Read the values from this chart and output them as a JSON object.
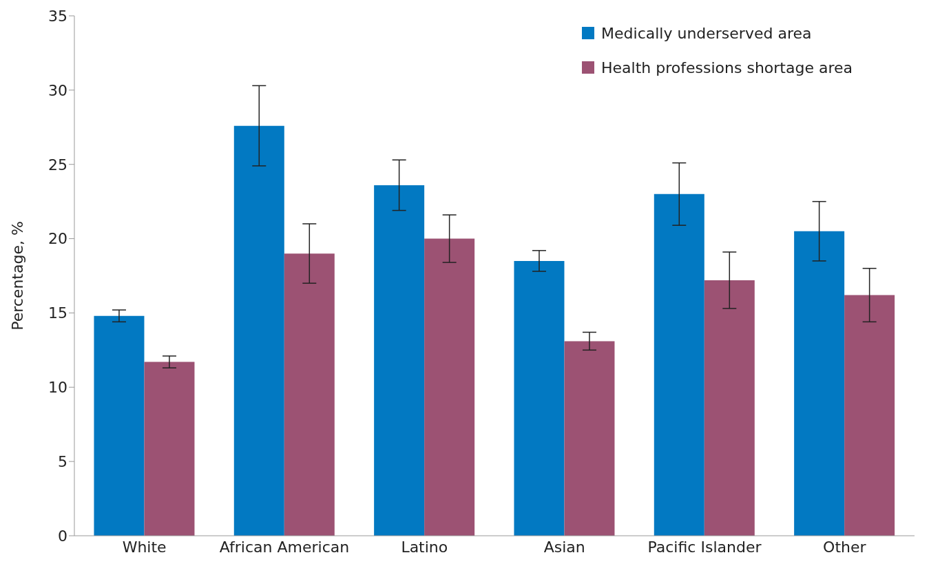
{
  "chart_data": {
    "type": "bar",
    "ylabel": "Percentage, %",
    "categories": [
      "White",
      "African American",
      "Latino",
      "Asian",
      "Pacific Islander",
      "Other"
    ],
    "series": [
      {
        "name": "Medically underserved area",
        "color": "#0279c2",
        "values": [
          14.8,
          27.6,
          23.6,
          18.5,
          23.0,
          20.5
        ],
        "errors": [
          0.4,
          2.7,
          1.7,
          0.7,
          2.1,
          2.0
        ]
      },
      {
        "name": "Health professions shortage area",
        "color": "#9c5273",
        "values": [
          11.7,
          19.0,
          20.0,
          13.1,
          17.2,
          16.2
        ],
        "errors": [
          0.4,
          2.0,
          1.6,
          0.6,
          1.9,
          1.8
        ]
      }
    ],
    "ylim": [
      0,
      35
    ],
    "yticks": [
      0,
      5,
      10,
      15,
      20,
      25,
      30,
      35
    ],
    "grid": false,
    "legend": "top right"
  }
}
